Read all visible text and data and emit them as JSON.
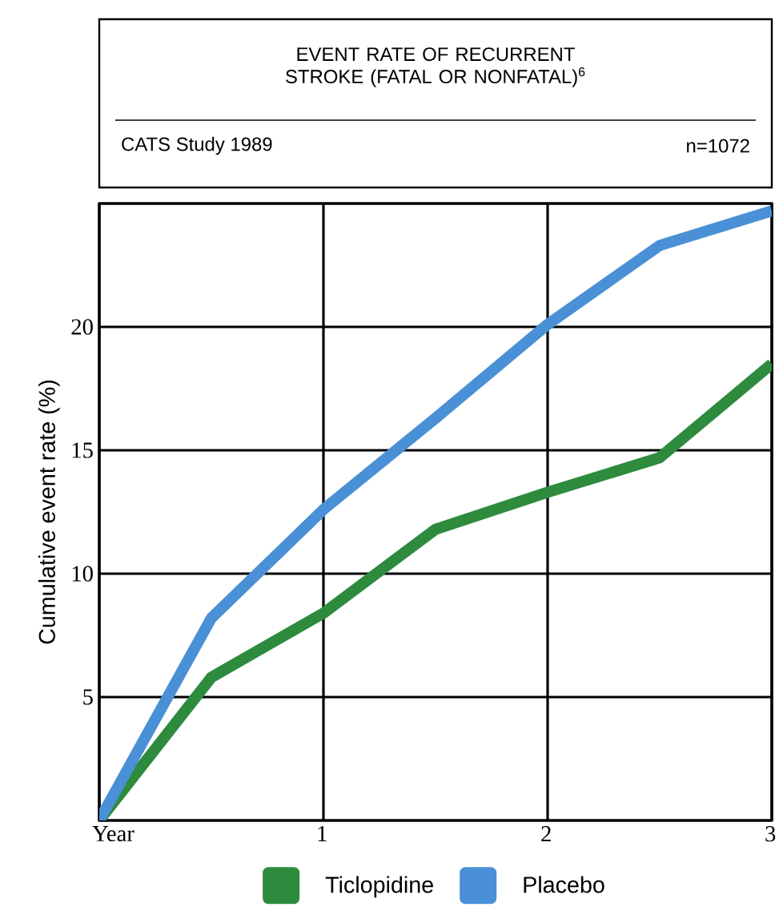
{
  "chart_data": {
    "type": "line",
    "title": "EVENT RATE OF RECURRENT STROKE (FATAL OR NONFATAL)$^{6}$",
    "subtitle": "CATS Study 1989",
    "annotations": [
      "n=1072"
    ],
    "ylabel": "Cumulative event rate (%)",
    "x": [
      0,
      0.5,
      1,
      1.5,
      2,
      2.5,
      3
    ],
    "series": [
      {
        "name": "Ticlopidine",
        "color": "#2e8b3e",
        "values": [
          0,
          5.8,
          8.4,
          11.8,
          13.3,
          14.7,
          18.5
        ]
      },
      {
        "name": "Placebo",
        "color": "#4a90d6",
        "values": [
          0,
          8.2,
          12.6,
          16.3,
          20.1,
          23.3,
          24.7
        ]
      }
    ],
    "xlim": [
      0,
      3
    ],
    "ylim": [
      0,
      25
    ],
    "xticks": [
      {
        "value": 0,
        "label": "Year"
      },
      1,
      2,
      3
    ],
    "yticks": [
      {
        "value": 0,
        "label": null
      },
      5,
      10,
      15,
      20,
      {
        "value": 25,
        "label": null
      }
    ],
    "grid": true,
    "legend": "bottom",
    "line_style": "solid",
    "marker": "none"
  }
}
